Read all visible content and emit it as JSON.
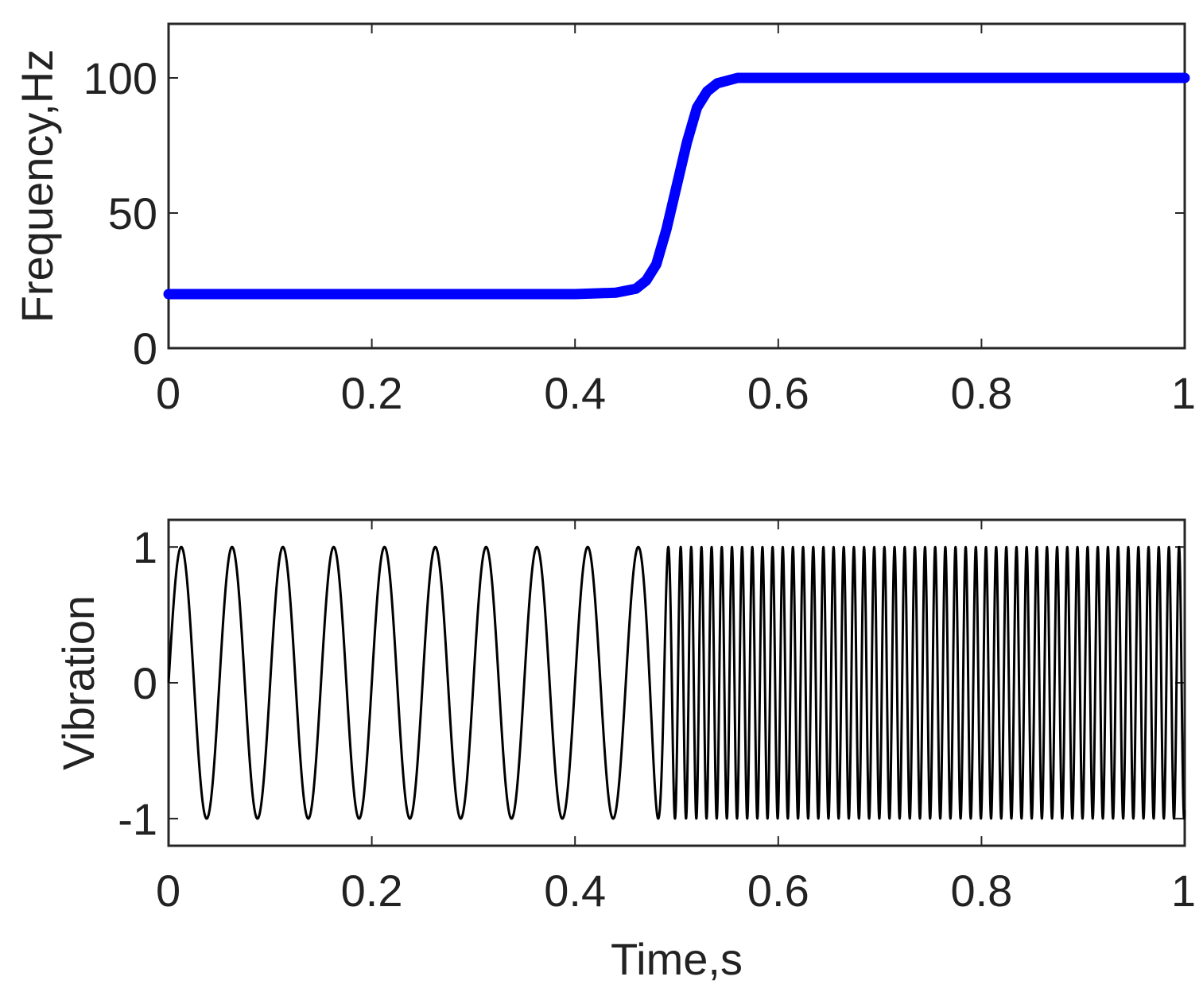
{
  "chart_data": [
    {
      "type": "line",
      "title": "",
      "xlabel": "",
      "ylabel": "Frequency,Hz",
      "xlim": [
        0,
        1
      ],
      "ylim": [
        0,
        120
      ],
      "xticks": [
        0,
        0.2,
        0.4,
        0.6,
        0.8,
        1
      ],
      "xtick_labels": [
        "0",
        "0.2",
        "0.4",
        "0.6",
        "0.8",
        "1"
      ],
      "yticks": [
        0,
        50,
        100
      ],
      "ytick_labels": [
        "0",
        "50",
        "100"
      ],
      "grid": false,
      "legend": "none",
      "series": [
        {
          "color": "#0000ff",
          "x": [
            0,
            0.1,
            0.2,
            0.3,
            0.4,
            0.44,
            0.46,
            0.47,
            0.48,
            0.49,
            0.5,
            0.51,
            0.52,
            0.53,
            0.54,
            0.56,
            0.6,
            0.7,
            0.8,
            0.9,
            1
          ],
          "y": [
            20,
            20,
            20,
            20,
            20,
            20.5,
            22,
            25,
            31,
            44,
            60,
            76,
            89,
            95,
            98,
            100,
            100,
            100,
            100,
            100,
            100
          ]
        }
      ]
    },
    {
      "type": "line",
      "title": "",
      "xlabel": "Time,s",
      "ylabel": "Vibration",
      "xlim": [
        0,
        1
      ],
      "ylim": [
        -1.2,
        1.2
      ],
      "xticks": [
        0,
        0.2,
        0.4,
        0.6,
        0.8,
        1
      ],
      "xtick_labels": [
        "0",
        "0.2",
        "0.4",
        "0.6",
        "0.8",
        "1"
      ],
      "yticks": [
        -1,
        0,
        1
      ],
      "ytick_labels": [
        "-1",
        "0",
        "1"
      ],
      "grid": false,
      "legend": "none",
      "series": [
        {
          "color": "#000000",
          "formula": "sin(2π·∫f(t)dt)",
          "f_low": 20,
          "f_high": 100,
          "transition_time": 0.49,
          "amplitude": 1
        }
      ]
    }
  ]
}
